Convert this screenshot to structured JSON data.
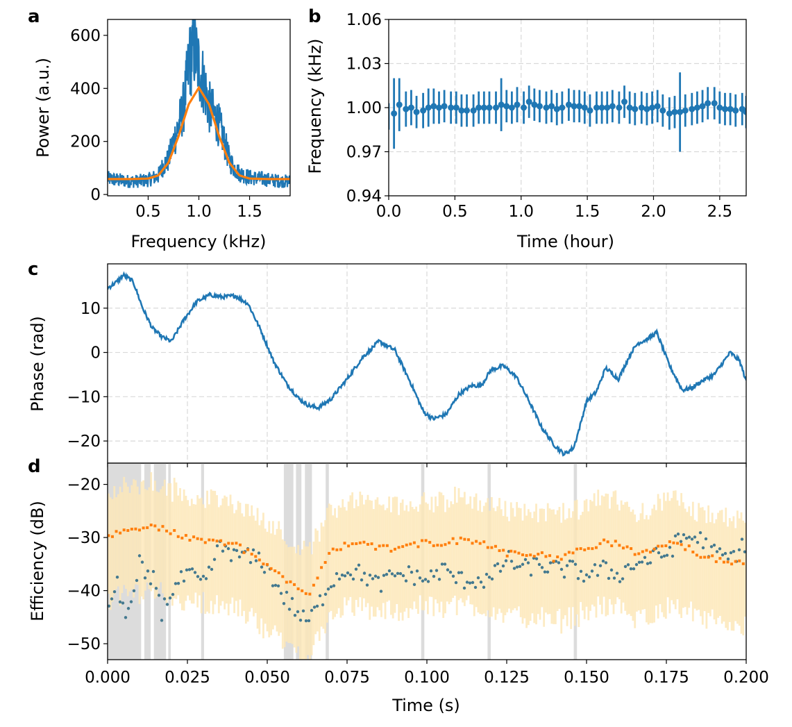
{
  "chart_data": [
    {
      "panel": "a",
      "type": "line",
      "xlabel": "Frequency (kHz)",
      "ylabel": "Power (a.u.)",
      "xlim": [
        0.1,
        1.9
      ],
      "ylim": [
        -5,
        660
      ],
      "xticks": [
        0.5,
        1.0,
        1.5
      ],
      "xtick_labels": [
        "0.5",
        "1.0",
        "1.5"
      ],
      "yticks": [
        0,
        200,
        400,
        600
      ],
      "ytick_labels": [
        "0",
        "200",
        "400",
        "600"
      ],
      "grid": false,
      "series": [
        {
          "kind": "noisy-spectrum",
          "color": "#1f77b4",
          "x": [
            0.1,
            0.2,
            0.3,
            0.4,
            0.5,
            0.6,
            0.65,
            0.7,
            0.75,
            0.8,
            0.85,
            0.9,
            0.95,
            1.0,
            1.05,
            1.1,
            1.15,
            1.2,
            1.25,
            1.3,
            1.35,
            1.4,
            1.5,
            1.6,
            1.7,
            1.8,
            1.9
          ],
          "y": [
            60,
            55,
            50,
            50,
            55,
            70,
            110,
            130,
            200,
            260,
            330,
            480,
            560,
            480,
            420,
            330,
            300,
            260,
            200,
            130,
            100,
            80,
            65,
            60,
            55,
            50,
            50
          ],
          "peak_max": 630
        },
        {
          "kind": "gaussian-fit",
          "color": "#ff7f0e",
          "x": [
            0.1,
            0.3,
            0.5,
            0.6,
            0.7,
            0.8,
            0.9,
            1.0,
            1.1,
            1.2,
            1.3,
            1.4,
            1.5,
            1.7,
            1.9
          ],
          "y": [
            58,
            58,
            60,
            72,
            120,
            220,
            340,
            403,
            340,
            220,
            120,
            72,
            60,
            58,
            58
          ]
        }
      ]
    },
    {
      "panel": "b",
      "type": "scatter",
      "xlabel": "Time (hour)",
      "ylabel": "Frequency (kHz)",
      "xlim": [
        0.0,
        2.7
      ],
      "ylim": [
        0.94,
        1.06
      ],
      "xticks": [
        0.0,
        0.5,
        1.0,
        1.5,
        2.0,
        2.5
      ],
      "xtick_labels": [
        "0.0",
        "0.5",
        "1.0",
        "1.5",
        "2.0",
        "2.5"
      ],
      "yticks": [
        0.94,
        0.97,
        1.0,
        1.03,
        1.06
      ],
      "ytick_labels": [
        "0.94",
        "0.97",
        "1.00",
        "1.03",
        "1.06"
      ],
      "grid": true,
      "color": "#1f77b4",
      "x": [
        0.04,
        0.08,
        0.13,
        0.17,
        0.21,
        0.26,
        0.3,
        0.34,
        0.38,
        0.42,
        0.47,
        0.51,
        0.55,
        0.59,
        0.64,
        0.68,
        0.72,
        0.76,
        0.81,
        0.85,
        0.89,
        0.93,
        0.97,
        1.02,
        1.06,
        1.1,
        1.14,
        1.19,
        1.23,
        1.27,
        1.31,
        1.36,
        1.4,
        1.44,
        1.48,
        1.52,
        1.57,
        1.61,
        1.65,
        1.69,
        1.74,
        1.78,
        1.82,
        1.86,
        1.91,
        1.95,
        1.99,
        2.03,
        2.07,
        2.12,
        2.16,
        2.2,
        2.24,
        2.29,
        2.33,
        2.37,
        2.41,
        2.46,
        2.5,
        2.54,
        2.58,
        2.62,
        2.67,
        2.7
      ],
      "y": [
        0.996,
        1.002,
        0.999,
        1.0,
        0.997,
        0.998,
        1.0,
        1.001,
        1.0,
        1.001,
        1.0,
        1.0,
        0.998,
        0.998,
        0.998,
        1.0,
        1.0,
        1.0,
        1.0,
        1.002,
        1.001,
        1.0,
        1.002,
        1.0,
        1.004,
        1.002,
        1.001,
        1.0,
        1.001,
        0.999,
        1.0,
        1.002,
        1.001,
        1.001,
        1.0,
        0.998,
        1.0,
        1.0,
        1.0,
        1.001,
        1.0,
        1.004,
        1.0,
        0.999,
        1.0,
        0.999,
        1.0,
        1.001,
        0.998,
        0.996,
        0.997,
        0.997,
        0.998,
        0.999,
        1.0,
        1.001,
        1.003,
        1.003,
        1.0,
        0.999,
        0.999,
        0.998,
        0.999,
        0.997
      ],
      "yerr": [
        0.024,
        0.018,
        0.012,
        0.012,
        0.011,
        0.012,
        0.013,
        0.012,
        0.011,
        0.011,
        0.011,
        0.011,
        0.011,
        0.011,
        0.011,
        0.011,
        0.011,
        0.011,
        0.011,
        0.018,
        0.011,
        0.011,
        0.012,
        0.011,
        0.011,
        0.011,
        0.011,
        0.011,
        0.011,
        0.011,
        0.011,
        0.011,
        0.011,
        0.011,
        0.011,
        0.011,
        0.011,
        0.011,
        0.011,
        0.011,
        0.011,
        0.011,
        0.011,
        0.011,
        0.011,
        0.011,
        0.011,
        0.011,
        0.011,
        0.011,
        0.011,
        0.027,
        0.011,
        0.011,
        0.011,
        0.011,
        0.011,
        0.011,
        0.011,
        0.011,
        0.011,
        0.011,
        0.011,
        0.011
      ]
    },
    {
      "panel": "c",
      "type": "line",
      "xlabel": "",
      "ylabel": "Phase (rad)",
      "xlim": [
        0.0,
        0.2
      ],
      "ylim": [
        -25,
        20
      ],
      "xticks": [
        0.0,
        0.025,
        0.05,
        0.075,
        0.1,
        0.125,
        0.15,
        0.175,
        0.2
      ],
      "yticks": [
        -20,
        -10,
        0,
        10
      ],
      "ytick_labels": [
        "−20",
        "−10",
        "0",
        "10"
      ],
      "grid": true,
      "color": "#1f77b4",
      "x": [
        0.0,
        0.003,
        0.005,
        0.008,
        0.011,
        0.014,
        0.017,
        0.02,
        0.024,
        0.028,
        0.032,
        0.036,
        0.04,
        0.044,
        0.048,
        0.052,
        0.056,
        0.06,
        0.063,
        0.066,
        0.07,
        0.075,
        0.08,
        0.085,
        0.09,
        0.095,
        0.099,
        0.102,
        0.106,
        0.11,
        0.114,
        0.117,
        0.12,
        0.124,
        0.128,
        0.132,
        0.136,
        0.14,
        0.143,
        0.146,
        0.148,
        0.15,
        0.153,
        0.156,
        0.16,
        0.164,
        0.166,
        0.169,
        0.172,
        0.176,
        0.18,
        0.183,
        0.186,
        0.19,
        0.193,
        0.195,
        0.198,
        0.2
      ],
      "y": [
        14.5,
        16.0,
        17.5,
        16.0,
        10.0,
        5.5,
        3.5,
        2.5,
        7.5,
        11.5,
        13.0,
        12.5,
        12.8,
        11.0,
        5.0,
        -2.0,
        -7.0,
        -10.5,
        -12.0,
        -12.5,
        -10.5,
        -6.0,
        -1.0,
        2.5,
        0.5,
        -7.0,
        -13.5,
        -15.0,
        -14.0,
        -9.5,
        -7.5,
        -7.5,
        -4.0,
        -3.0,
        -5.5,
        -11.0,
        -17.0,
        -21.0,
        -23.0,
        -21.5,
        -16.5,
        -11.0,
        -9.0,
        -3.5,
        -6.0,
        0.0,
        2.0,
        3.0,
        4.5,
        -3.0,
        -8.5,
        -8.0,
        -6.5,
        -5.0,
        -2.0,
        0.0,
        -2.0,
        -6.5
      ]
    },
    {
      "panel": "d",
      "type": "scatter",
      "xlabel": "Time (s)",
      "ylabel": "Efficiency (dB)",
      "xlim": [
        0.0,
        0.2
      ],
      "ylim": [
        -53,
        -16
      ],
      "xticks": [
        0.0,
        0.025,
        0.05,
        0.075,
        0.1,
        0.125,
        0.15,
        0.175,
        0.2
      ],
      "xtick_labels": [
        "0.000",
        "0.025",
        "0.050",
        "0.075",
        "0.100",
        "0.125",
        "0.150",
        "0.175",
        "0.200"
      ],
      "yticks": [
        -50,
        -40,
        -30,
        -20
      ],
      "ytick_labels": [
        "−50",
        "−40",
        "−30",
        "−20"
      ],
      "grid": false,
      "colors": {
        "orange": "#ff7f0e",
        "teal": "#44798f",
        "band": "#fde7b8",
        "shade": "#dcdcdc"
      },
      "shaded_spans": [
        [
          0.0,
          0.0105
        ],
        [
          0.0115,
          0.0135
        ],
        [
          0.0145,
          0.0183
        ],
        [
          0.019,
          0.0198
        ],
        [
          0.0293,
          0.0302
        ],
        [
          0.0552,
          0.0582
        ],
        [
          0.059,
          0.0607
        ],
        [
          0.0618,
          0.064
        ],
        [
          0.0683,
          0.0693
        ],
        [
          0.0982,
          0.0992
        ],
        [
          0.119,
          0.12
        ],
        [
          0.146,
          0.147
        ]
      ],
      "orange_series": {
        "x": [
          0.0,
          0.005,
          0.01,
          0.015,
          0.02,
          0.025,
          0.03,
          0.035,
          0.04,
          0.045,
          0.05,
          0.055,
          0.06,
          0.063,
          0.065,
          0.07,
          0.075,
          0.08,
          0.085,
          0.09,
          0.095,
          0.1,
          0.105,
          0.11,
          0.115,
          0.12,
          0.125,
          0.13,
          0.135,
          0.14,
          0.145,
          0.15,
          0.155,
          0.16,
          0.165,
          0.17,
          0.175,
          0.18,
          0.185,
          0.19,
          0.195,
          0.2
        ],
        "y": [
          -29.5,
          -29.0,
          -28.0,
          -28.0,
          -29.0,
          -30.0,
          -30.5,
          -31.0,
          -31.5,
          -33.0,
          -35.0,
          -38.0,
          -40.0,
          -41.0,
          -38.0,
          -32.0,
          -31.5,
          -31.0,
          -32.0,
          -32.0,
          -31.5,
          -31.0,
          -31.0,
          -30.5,
          -31.0,
          -31.5,
          -33.0,
          -33.0,
          -33.0,
          -34.0,
          -33.0,
          -32.0,
          -31.0,
          -31.0,
          -33.0,
          -33.0,
          -31.0,
          -31.5,
          -33.0,
          -34.0,
          -34.5,
          -35.0
        ],
        "band_low": -12.0,
        "band_high": 8.0
      },
      "teal_series": {
        "x": [
          0.001,
          0.003,
          0.005,
          0.008,
          0.01,
          0.012,
          0.015,
          0.017,
          0.02,
          0.025,
          0.028,
          0.03,
          0.035,
          0.038,
          0.04,
          0.042,
          0.045,
          0.048,
          0.052,
          0.055,
          0.058,
          0.062,
          0.065,
          0.07,
          0.075,
          0.08,
          0.085,
          0.09,
          0.095,
          0.1,
          0.105,
          0.11,
          0.115,
          0.12,
          0.125,
          0.13,
          0.135,
          0.14,
          0.145,
          0.15,
          0.155,
          0.16,
          0.165,
          0.17,
          0.175,
          0.18,
          0.185,
          0.19,
          0.195,
          0.2
        ],
        "y": [
          -42,
          -39,
          -44,
          -42,
          -35,
          -38,
          -38,
          -44,
          -40,
          -37,
          -38,
          -39,
          -32,
          -32,
          -34,
          -33,
          -34,
          -34,
          -38,
          -41,
          -43,
          -46,
          -44,
          -38,
          -36,
          -37,
          -39,
          -37,
          -37,
          -38,
          -36,
          -38,
          -38,
          -38,
          -34,
          -36,
          -35,
          -36,
          -36,
          -37,
          -36,
          -37,
          -35,
          -34,
          -33,
          -30,
          -30,
          -33,
          -34,
          -31
        ]
      }
    }
  ],
  "panels": {
    "a": {
      "letter": "a",
      "xlabel": "Frequency (kHz)",
      "ylabel": "Power (a.u.)"
    },
    "b": {
      "letter": "b",
      "xlabel": "Time (hour)",
      "ylabel": "Frequency (kHz)"
    },
    "c": {
      "letter": "c",
      "ylabel": "Phase (rad)"
    },
    "d": {
      "letter": "d",
      "xlabel": "Time (s)",
      "ylabel": "Efficiency (dB)"
    }
  }
}
